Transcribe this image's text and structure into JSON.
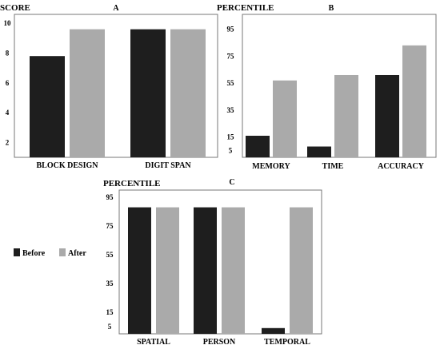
{
  "colors": {
    "before": "#1e1e1e",
    "after": "#aaaaaa",
    "frame": "#777777"
  },
  "legend": [
    {
      "name": "Before",
      "color_key": "before"
    },
    {
      "name": "After",
      "color_key": "after"
    }
  ],
  "chart_data": [
    {
      "type": "bar",
      "panel": "A",
      "ylabel": "SCORE",
      "ylim": [
        1,
        10.6
      ],
      "yticks": [
        2,
        4,
        6,
        8,
        10
      ],
      "categories": [
        "BLOCK DESIGN",
        "DIGIT SPAN"
      ],
      "series": [
        {
          "name": "Before",
          "values": [
            7.8,
            9.6
          ]
        },
        {
          "name": "After",
          "values": [
            9.6,
            9.6
          ]
        }
      ]
    },
    {
      "type": "bar",
      "panel": "B",
      "ylabel": "PERCENTILE",
      "ylim": [
        0,
        106
      ],
      "yticks": [
        5,
        15,
        35,
        55,
        75,
        95
      ],
      "categories": [
        "MEMORY",
        "TIME",
        "ACCURACY"
      ],
      "series": [
        {
          "name": "Before",
          "values": [
            16,
            8,
            61
          ]
        },
        {
          "name": "After",
          "values": [
            57,
            61,
            83
          ]
        }
      ]
    },
    {
      "type": "bar",
      "panel": "C",
      "ylabel": "PERCENTILE",
      "ylim": [
        0,
        100
      ],
      "yticks": [
        5,
        15,
        35,
        55,
        75,
        95
      ],
      "categories": [
        "SPATIAL",
        "PERSON",
        "TEMPORAL"
      ],
      "series": [
        {
          "name": "Before",
          "values": [
            88,
            88,
            4
          ]
        },
        {
          "name": "After",
          "values": [
            88,
            88,
            88
          ]
        }
      ]
    }
  ]
}
